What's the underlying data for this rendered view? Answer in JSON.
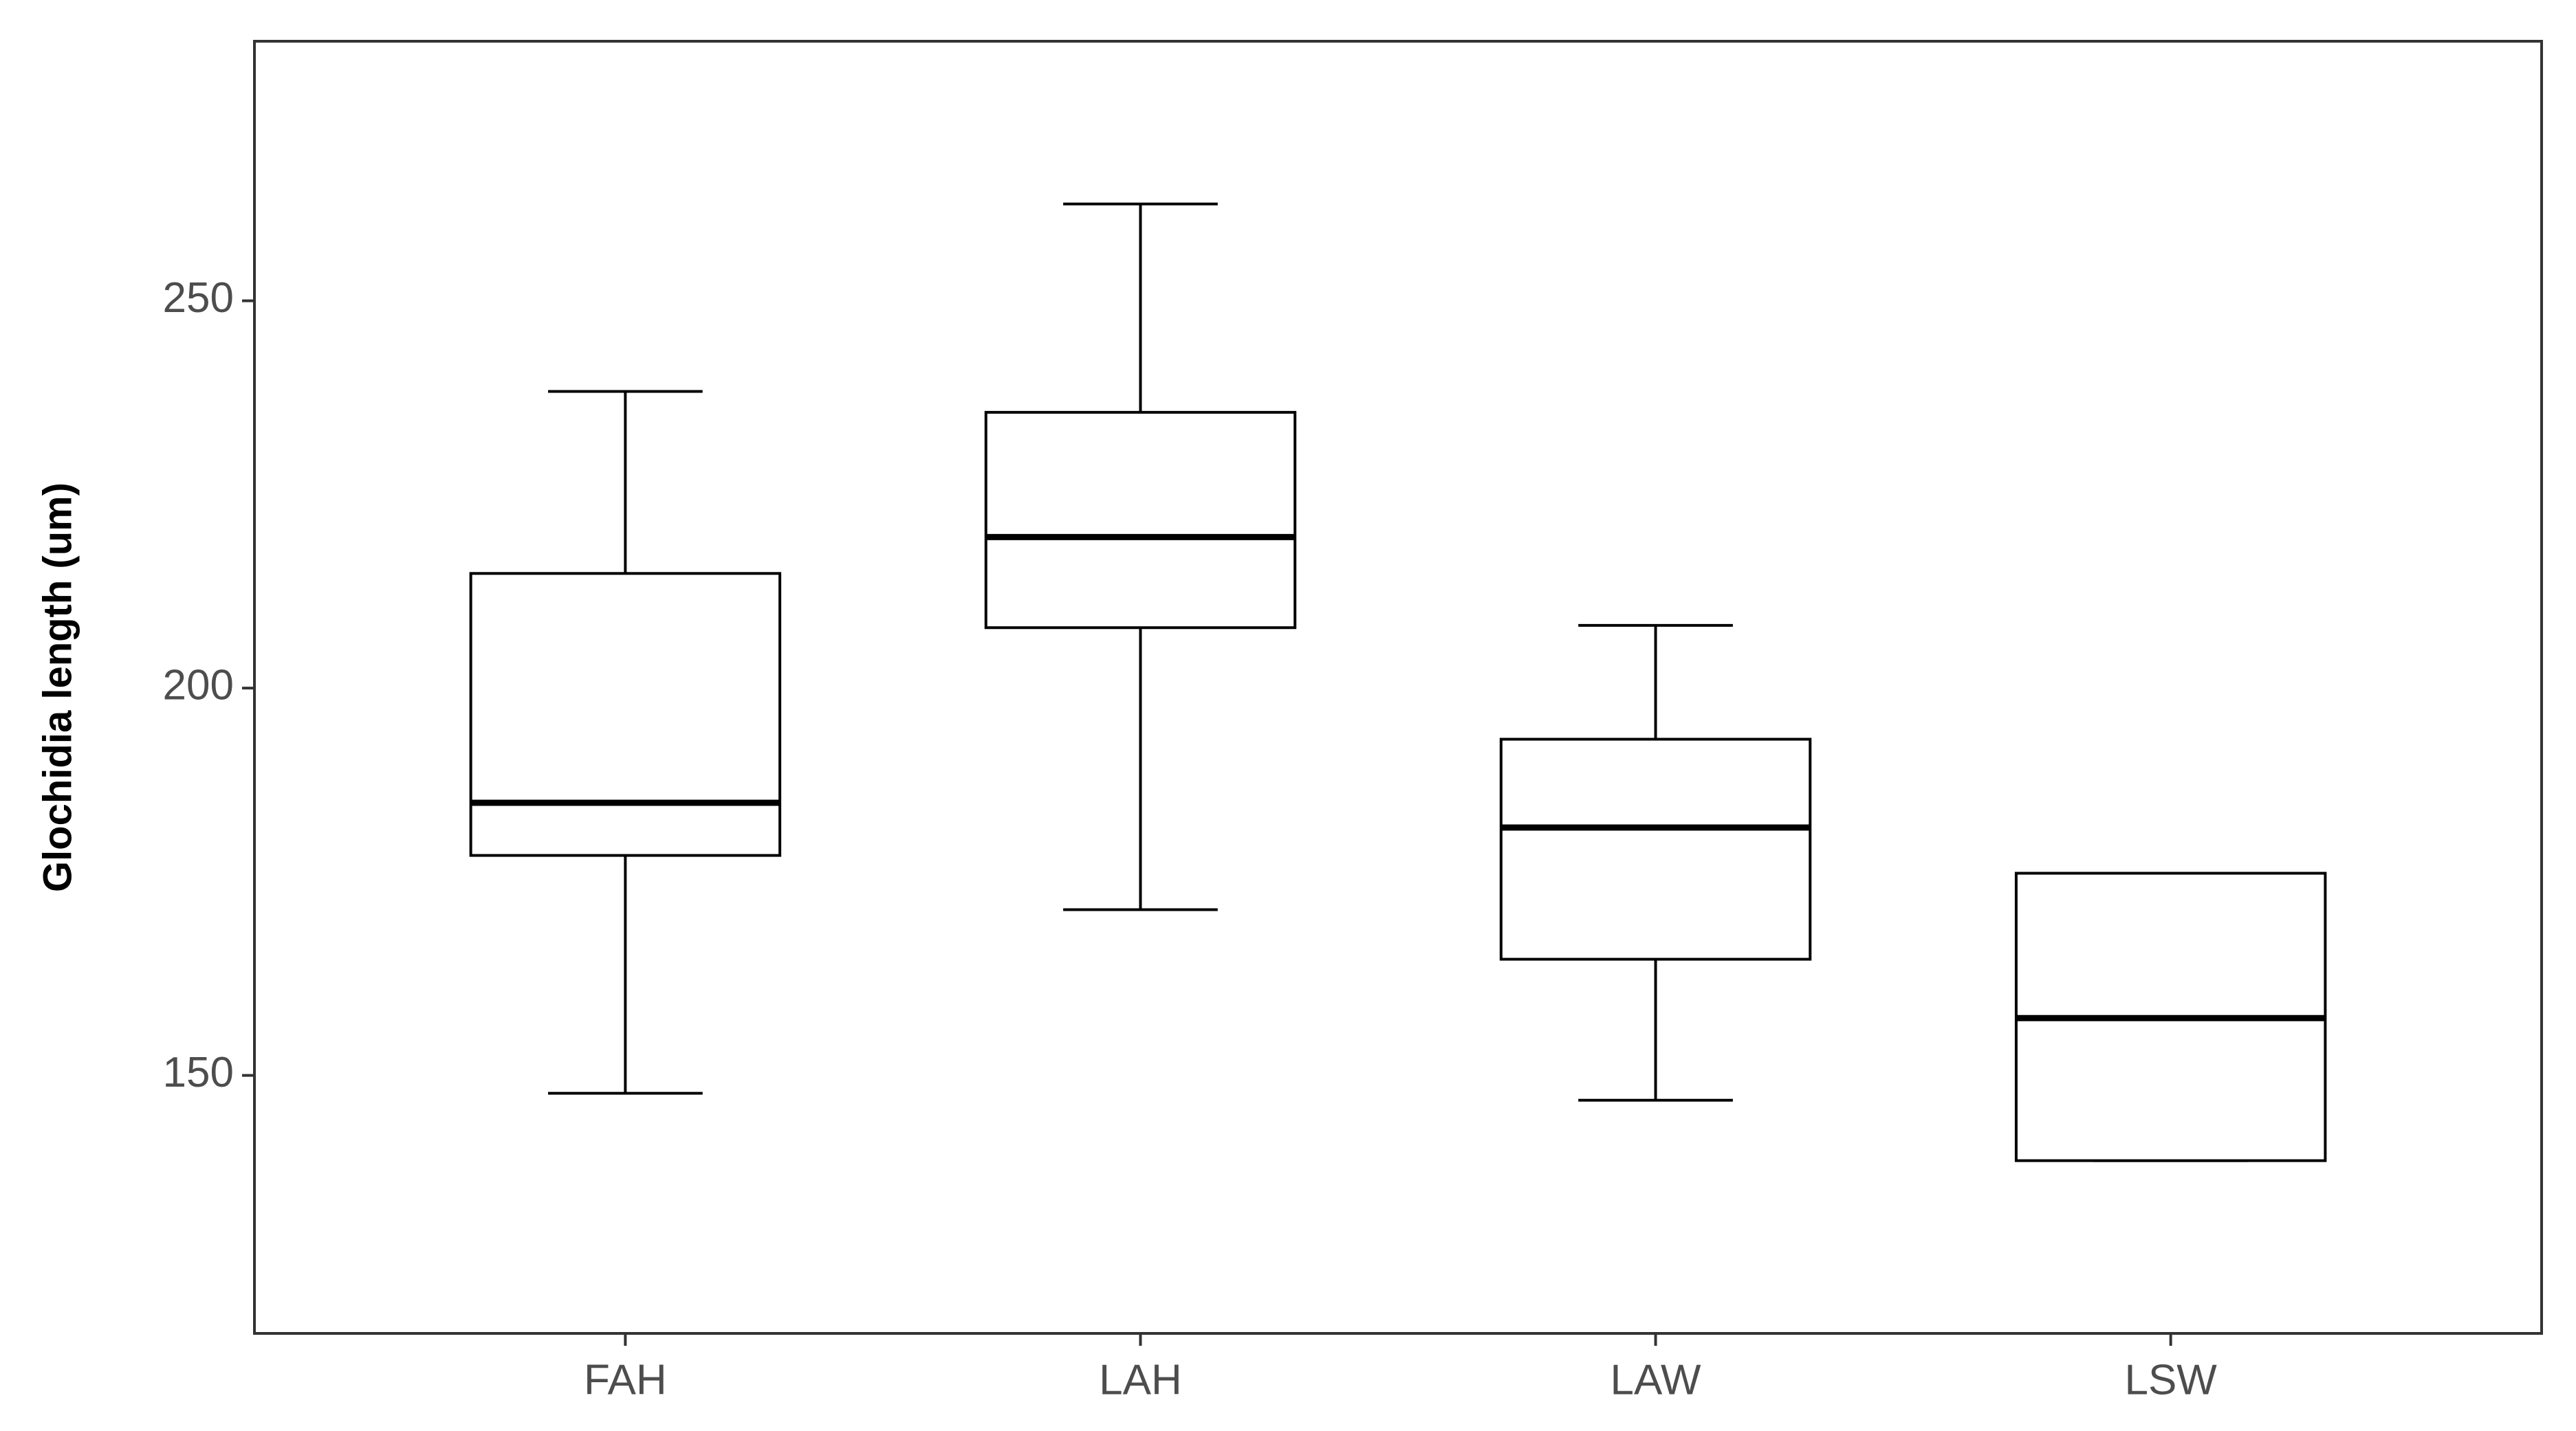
{
  "chart_data": {
    "type": "box",
    "y_label": "Glochidia length (um)",
    "categories": [
      "FAH",
      "LAH",
      "LAW",
      "LSW"
    ],
    "min": [
      147.7,
      171.4,
      146.8,
      139.0
    ],
    "q1": [
      178.4,
      207.8,
      165.0,
      139.0
    ],
    "median": [
      185.2,
      219.5,
      182.0,
      157.4
    ],
    "q3": [
      214.8,
      235.6,
      193.4,
      176.1
    ],
    "max": [
      238.3,
      262.5,
      208.1,
      176.1
    ],
    "color": "#000000",
    "ylim": [
      116.7,
      283.5
    ],
    "yticks": [
      150,
      200,
      250
    ],
    "grid": false
  }
}
